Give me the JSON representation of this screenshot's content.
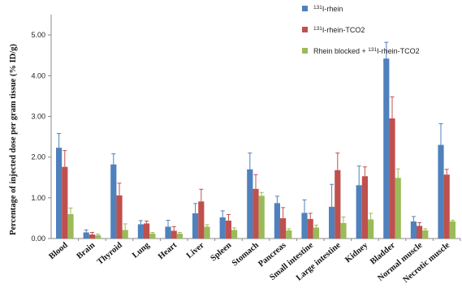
{
  "chart_data": {
    "type": "bar",
    "ylabel": "Percentage of injected dose per gram tissue (% ID/g)",
    "ylim": [
      0,
      5.5
    ],
    "yticks": [
      "0.00",
      "1.00",
      "2.00",
      "3.00",
      "4.00",
      "5.00"
    ],
    "ytick_values": [
      0,
      1,
      2,
      3,
      4,
      5
    ],
    "grid": false,
    "legend_position": "top-right",
    "categories": [
      "Blood",
      "Brain",
      "Thyroid",
      "Lung",
      "Heart",
      "Liver",
      "Spleen",
      "Stomach",
      "Pancreas",
      "Small intestine",
      "Large intestine",
      "Kidney",
      "Bladder",
      "Normal muscle",
      "Necrotic muscle"
    ],
    "series": [
      {
        "name_sup": "131",
        "name_rest": "I-rhein",
        "color": "#4f81bd",
        "values": [
          2.23,
          0.15,
          1.82,
          0.35,
          0.29,
          0.62,
          0.52,
          1.7,
          0.87,
          0.63,
          0.78,
          1.31,
          4.42,
          0.42,
          2.3
        ],
        "errors": [
          0.35,
          0.06,
          0.26,
          0.09,
          0.16,
          0.24,
          0.16,
          0.4,
          0.17,
          0.32,
          0.55,
          0.47,
          0.4,
          0.12,
          0.52
        ]
      },
      {
        "name_sup": "131",
        "name_rest": "I-rhein-TCO2",
        "color": "#c0504d",
        "values": [
          1.76,
          0.1,
          1.06,
          0.37,
          0.19,
          0.91,
          0.44,
          1.22,
          0.5,
          0.48,
          1.68,
          1.53,
          2.95,
          0.31,
          1.57
        ],
        "errors": [
          0.4,
          0.05,
          0.3,
          0.06,
          0.1,
          0.3,
          0.15,
          0.35,
          0.26,
          0.14,
          0.42,
          0.23,
          0.53,
          0.08,
          0.13
        ]
      },
      {
        "name_prefix": "Rhein blocked + ",
        "name_sup": "131",
        "name_rest": "I-rhein-TCO2",
        "color": "#9bbb59",
        "values": [
          0.6,
          0.08,
          0.21,
          0.12,
          0.12,
          0.29,
          0.21,
          1.05,
          0.2,
          0.27,
          0.38,
          0.47,
          1.49,
          0.2,
          0.42
        ],
        "errors": [
          0.15,
          0.03,
          0.15,
          0.03,
          0.03,
          0.05,
          0.05,
          0.08,
          0.04,
          0.06,
          0.15,
          0.15,
          0.22,
          0.04,
          0.03
        ]
      }
    ]
  }
}
